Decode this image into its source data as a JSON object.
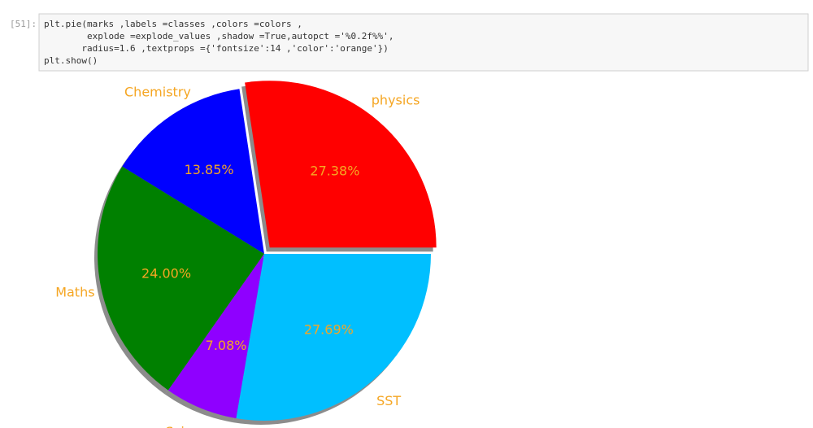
{
  "cell": {
    "prompt": "[51]:",
    "code": [
      "plt.pie(marks ,labels =classes ,colors =colors ,",
      "        explode =explode_values ,shadow =True,autopct ='%0.2f%%',",
      "       radius=1.6 ,textprops ={'fontsize':14 ,'color':'orange'})",
      "plt.show()"
    ]
  },
  "chart_data": {
    "type": "pie",
    "categories": [
      "physics",
      "Chemistry",
      "Maths",
      "Science",
      "SST"
    ],
    "values": [
      27.38,
      13.85,
      24.0,
      7.08,
      27.69
    ],
    "value_labels": [
      "27.38%",
      "13.85%",
      "24.00%",
      "7.08%",
      "27.69%"
    ],
    "colors": [
      "#ff0000",
      "#0000ff",
      "#008000",
      "#8f00ff",
      "#00bfff"
    ],
    "explode": [
      0.05,
      0,
      0,
      0,
      0
    ],
    "shadow": true,
    "text_color": "#f5a623"
  }
}
